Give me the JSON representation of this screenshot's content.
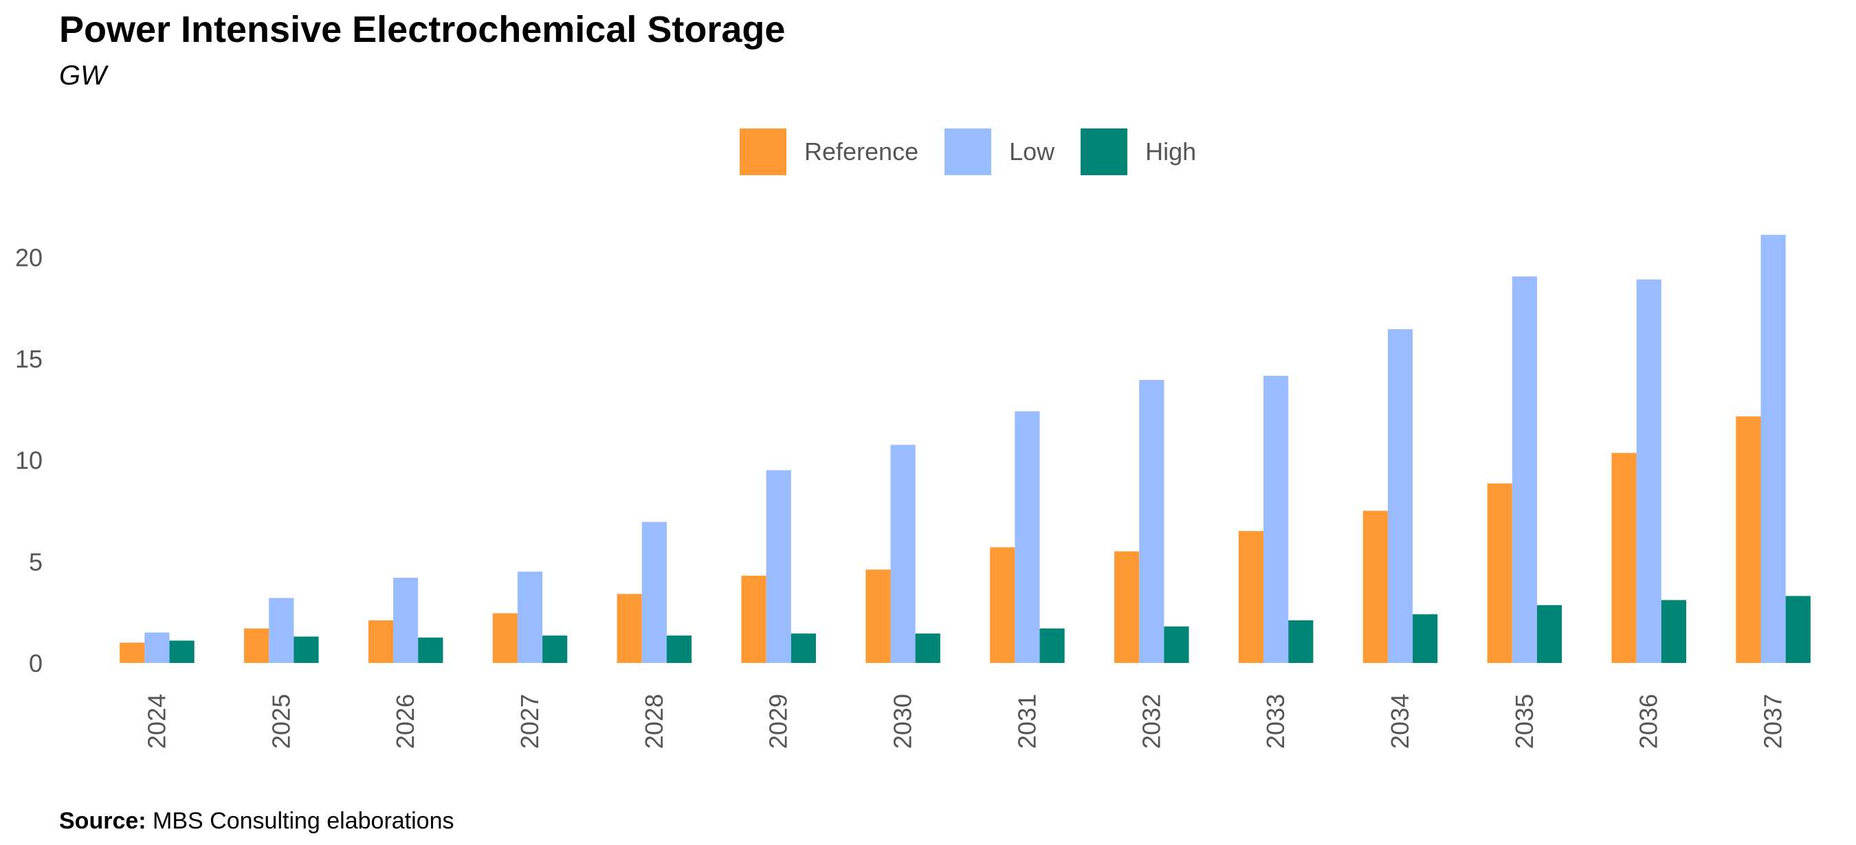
{
  "header": {
    "title": "Power Intensive Electrochemical Storage",
    "subtitle": "GW"
  },
  "footer": {
    "source_label": "Source:",
    "source_text": " MBS Consulting elaborations"
  },
  "chart_data": {
    "type": "bar",
    "title": "Power Intensive Electrochemical Storage",
    "subtitle": "GW",
    "xlabel": "",
    "ylabel": "",
    "ylim": [
      0,
      21.5
    ],
    "yticks": [
      0,
      5,
      10,
      15,
      20
    ],
    "grid": false,
    "legend_position": "top-center",
    "categories": [
      "2024",
      "2025",
      "2026",
      "2027",
      "2028",
      "2029",
      "2030",
      "2031",
      "2032",
      "2033",
      "2034",
      "2035",
      "2036",
      "2037"
    ],
    "series": [
      {
        "name": "Reference",
        "color": "#FF9933",
        "values": [
          1.0,
          1.7,
          2.1,
          2.45,
          3.4,
          4.3,
          4.6,
          5.7,
          5.5,
          6.5,
          7.5,
          8.85,
          10.35,
          12.15
        ]
      },
      {
        "name": "Low",
        "color": "#99BBFF",
        "values": [
          1.5,
          3.2,
          4.2,
          4.5,
          6.95,
          9.5,
          10.75,
          12.4,
          13.95,
          14.15,
          16.45,
          19.05,
          18.9,
          21.1
        ]
      },
      {
        "name": "High",
        "color": "#008577",
        "values": [
          1.1,
          1.3,
          1.25,
          1.35,
          1.35,
          1.45,
          1.45,
          1.7,
          1.8,
          2.1,
          2.4,
          2.85,
          3.1,
          3.3
        ]
      }
    ]
  }
}
